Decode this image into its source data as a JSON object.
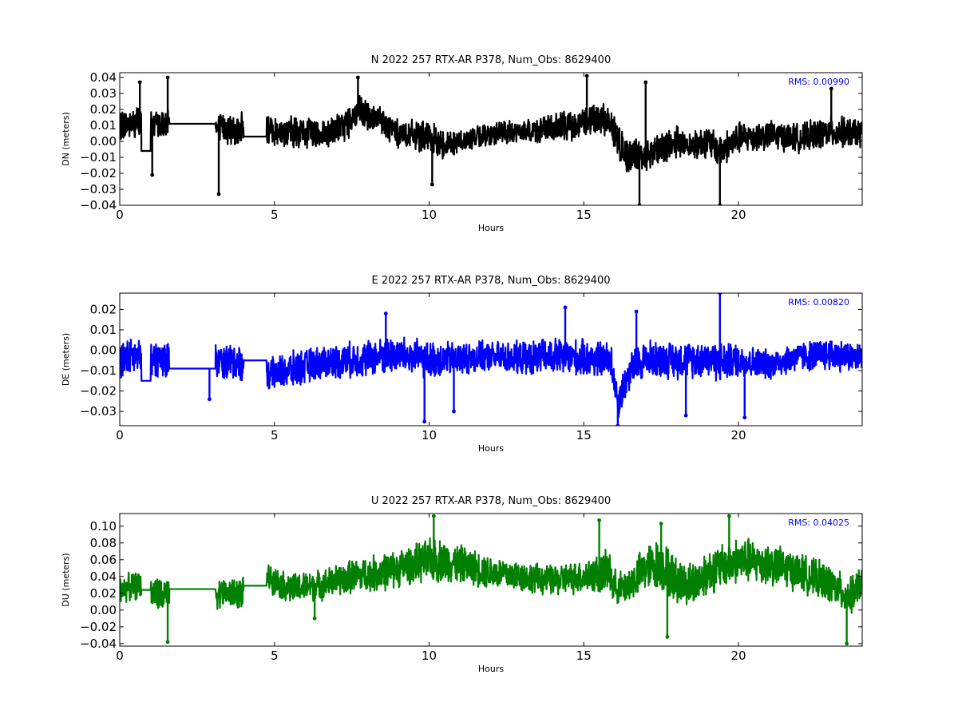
{
  "figure": {
    "background": "#ffffff"
  },
  "chart_data": [
    {
      "type": "line",
      "title": "N 2022 257 RTX-AR  P378, Num_Obs: 8629400",
      "xlabel": "Hours",
      "ylabel": "DN (meters)",
      "xlim": [
        0,
        24
      ],
      "ylim": [
        -0.04,
        0.043
      ],
      "xticks": [
        0,
        5,
        10,
        15,
        20
      ],
      "xtick_labels": [
        "0",
        "5",
        "10",
        "15",
        "20"
      ],
      "yticks": [
        -0.04,
        -0.03,
        -0.02,
        -0.01,
        0.0,
        0.01,
        0.02,
        0.03,
        0.04
      ],
      "ytick_labels": [
        "−0.04",
        "−0.03",
        "−0.02",
        "−0.01",
        "0.00",
        "0.01",
        "0.02",
        "0.03",
        "0.04"
      ],
      "grid": false,
      "annotation": {
        "text": "RMS:  0.00990",
        "position": "top-right",
        "color": "#0000ff"
      },
      "series": [
        {
          "color": "#000000",
          "x": [
            0,
            0.7,
            0.7,
            1.0,
            1.0,
            1.6,
            1.6,
            3.1,
            3.1,
            4.0,
            4.0,
            4.75,
            4.75,
            6.0,
            7.0,
            7.7,
            8.5,
            9.0,
            10.0,
            10.5,
            11.0,
            12.0,
            13.0,
            14.0,
            15.0,
            15.5,
            15.9,
            15.9,
            16.3,
            16.8,
            17.5,
            18.0,
            18.5,
            19.0,
            19.4,
            20.0,
            21.0,
            22.0,
            23.0,
            24.0
          ],
          "y": [
            0.01,
            0.012,
            -0.006,
            -0.006,
            0.01,
            0.01,
            0.011,
            0.011,
            0.008,
            0.008,
            0.003,
            0.003,
            0.007,
            0.005,
            0.006,
            0.018,
            0.012,
            0.005,
            0.002,
            -0.002,
            0.0,
            0.005,
            0.006,
            0.008,
            0.012,
            0.014,
            0.012,
            0.01,
            -0.008,
            -0.01,
            -0.004,
            0.0,
            -0.002,
            0.0,
            -0.006,
            0.002,
            0.004,
            0.002,
            0.006,
            0.005
          ],
          "envelope": [
            0.01,
            0.012,
            0,
            0,
            0.01,
            0.01,
            0,
            0,
            0.011,
            0.011,
            0,
            0,
            0.01,
            0.011,
            0.011,
            0.012,
            0.011,
            0.01,
            0.011,
            0.01,
            0.008,
            0.008,
            0.008,
            0.01,
            0.011,
            0.012,
            0.011,
            0.012,
            0.012,
            0.012,
            0.011,
            0.011,
            0.011,
            0.011,
            0.012,
            0.011,
            0.01,
            0.01,
            0.011,
            0.01
          ],
          "extremes": [
            {
              "x": 0.65,
              "y": 0.037
            },
            {
              "x": 1.55,
              "y": 0.04
            },
            {
              "x": 1.05,
              "y": -0.021
            },
            {
              "x": 3.2,
              "y": -0.033
            },
            {
              "x": 7.7,
              "y": 0.04
            },
            {
              "x": 10.1,
              "y": -0.027
            },
            {
              "x": 15.1,
              "y": 0.041
            },
            {
              "x": 16.8,
              "y": -0.04
            },
            {
              "x": 17.0,
              "y": 0.037
            },
            {
              "x": 19.4,
              "y": -0.04
            },
            {
              "x": 23.0,
              "y": 0.033
            }
          ]
        }
      ]
    },
    {
      "type": "line",
      "title": "E 2022 257 RTX-AR  P378, Num_Obs: 8629400",
      "xlabel": "Hours",
      "ylabel": "DE (meters)",
      "xlim": [
        0,
        24
      ],
      "ylim": [
        -0.037,
        0.028
      ],
      "xticks": [
        0,
        5,
        10,
        15,
        20
      ],
      "xtick_labels": [
        "0",
        "5",
        "10",
        "15",
        "20"
      ],
      "yticks": [
        -0.03,
        -0.02,
        -0.01,
        0.0,
        0.01,
        0.02
      ],
      "ytick_labels": [
        "−0.03",
        "−0.02",
        "−0.01",
        "0.00",
        "0.01",
        "0.02"
      ],
      "grid": false,
      "annotation": {
        "text": "RMS:  0.00820",
        "position": "top-right",
        "color": "#0000ff"
      },
      "series": [
        {
          "color": "#0000ff",
          "x": [
            0,
            0.7,
            0.7,
            1.0,
            1.0,
            1.6,
            1.6,
            3.1,
            3.1,
            4.0,
            4.0,
            4.75,
            4.75,
            5.5,
            6.5,
            8.0,
            9.0,
            10.0,
            11.0,
            12.0,
            13.0,
            14.0,
            15.0,
            15.9,
            15.9,
            16.1,
            16.5,
            17.0,
            18.0,
            19.0,
            19.4,
            20.0,
            21.0,
            22.0,
            23.0,
            24.0
          ],
          "y": [
            -0.004,
            -0.003,
            -0.015,
            -0.015,
            -0.004,
            -0.004,
            -0.009,
            -0.009,
            -0.006,
            -0.006,
            -0.005,
            -0.005,
            -0.012,
            -0.01,
            -0.006,
            -0.004,
            -0.002,
            -0.005,
            -0.004,
            -0.003,
            -0.004,
            -0.003,
            -0.004,
            -0.005,
            -0.008,
            -0.025,
            -0.01,
            -0.004,
            -0.005,
            -0.004,
            -0.006,
            -0.005,
            -0.007,
            -0.003,
            -0.002,
            -0.004
          ],
          "envelope": [
            0.01,
            0.01,
            0,
            0,
            0.01,
            0.01,
            0,
            0,
            0.01,
            0.01,
            0,
            0,
            0.008,
            0.01,
            0.009,
            0.01,
            0.01,
            0.01,
            0.009,
            0.008,
            0.009,
            0.01,
            0.01,
            0.01,
            0.006,
            0.01,
            0.01,
            0.01,
            0.01,
            0.01,
            0.011,
            0.009,
            0.008,
            0.008,
            0.009,
            0.008
          ],
          "extremes": [
            {
              "x": 2.9,
              "y": -0.024
            },
            {
              "x": 9.85,
              "y": -0.035
            },
            {
              "x": 10.8,
              "y": -0.03
            },
            {
              "x": 14.4,
              "y": 0.021
            },
            {
              "x": 16.1,
              "y": -0.037
            },
            {
              "x": 16.7,
              "y": 0.019
            },
            {
              "x": 18.3,
              "y": -0.032
            },
            {
              "x": 19.4,
              "y": 0.028
            },
            {
              "x": 20.2,
              "y": -0.033
            },
            {
              "x": 8.6,
              "y": 0.018
            }
          ]
        }
      ]
    },
    {
      "type": "line",
      "title": "U 2022 257 RTX-AR  P378, Num_Obs: 8629400",
      "xlabel": "Hours",
      "ylabel": "DU (meters)",
      "xlim": [
        0,
        24
      ],
      "ylim": [
        -0.043,
        0.115
      ],
      "xticks": [
        0,
        5,
        10,
        15,
        20
      ],
      "xtick_labels": [
        "0",
        "5",
        "10",
        "15",
        "20"
      ],
      "yticks": [
        -0.04,
        -0.02,
        0.0,
        0.02,
        0.04,
        0.06,
        0.08,
        0.1
      ],
      "ytick_labels": [
        "−0.04",
        "−0.02",
        "0.00",
        "0.02",
        "0.04",
        "0.06",
        "0.08",
        "0.10"
      ],
      "grid": false,
      "annotation": {
        "text": "RMS:  0.04025",
        "position": "top-right",
        "color": "#0000ff"
      },
      "series": [
        {
          "color": "#007f00",
          "x": [
            0,
            0.7,
            0.7,
            1.0,
            1.0,
            1.6,
            1.6,
            3.1,
            3.1,
            4.0,
            4.0,
            4.75,
            4.75,
            5.5,
            6.5,
            7.5,
            8.5,
            9.5,
            10.2,
            11.0,
            12.0,
            13.0,
            14.0,
            15.0,
            15.9,
            15.9,
            16.3,
            17.0,
            17.5,
            18.0,
            18.5,
            19.0,
            20.0,
            21.0,
            22.0,
            23.0,
            23.6,
            24.0
          ],
          "y": [
            0.025,
            0.03,
            0.024,
            0.024,
            0.02,
            0.015,
            0.025,
            0.025,
            0.02,
            0.02,
            0.029,
            0.029,
            0.04,
            0.025,
            0.03,
            0.04,
            0.045,
            0.055,
            0.06,
            0.055,
            0.045,
            0.04,
            0.035,
            0.04,
            0.045,
            0.03,
            0.025,
            0.05,
            0.055,
            0.035,
            0.03,
            0.045,
            0.06,
            0.055,
            0.045,
            0.03,
            0.015,
            0.035
          ],
          "envelope": [
            0.018,
            0.018,
            0,
            0,
            0.022,
            0.025,
            0,
            0,
            0.02,
            0.02,
            0,
            0,
            0.018,
            0.02,
            0.02,
            0.022,
            0.025,
            0.025,
            0.03,
            0.025,
            0.022,
            0.02,
            0.02,
            0.022,
            0.03,
            0.022,
            0.022,
            0.03,
            0.035,
            0.03,
            0.03,
            0.03,
            0.03,
            0.028,
            0.025,
            0.025,
            0.025,
            0.022
          ],
          "extremes": [
            {
              "x": 1.55,
              "y": -0.038
            },
            {
              "x": 10.15,
              "y": 0.112
            },
            {
              "x": 15.5,
              "y": 0.107
            },
            {
              "x": 17.5,
              "y": 0.103
            },
            {
              "x": 17.7,
              "y": -0.032
            },
            {
              "x": 19.7,
              "y": 0.112
            },
            {
              "x": 23.5,
              "y": -0.04
            },
            {
              "x": 6.3,
              "y": -0.01
            }
          ]
        }
      ]
    }
  ]
}
